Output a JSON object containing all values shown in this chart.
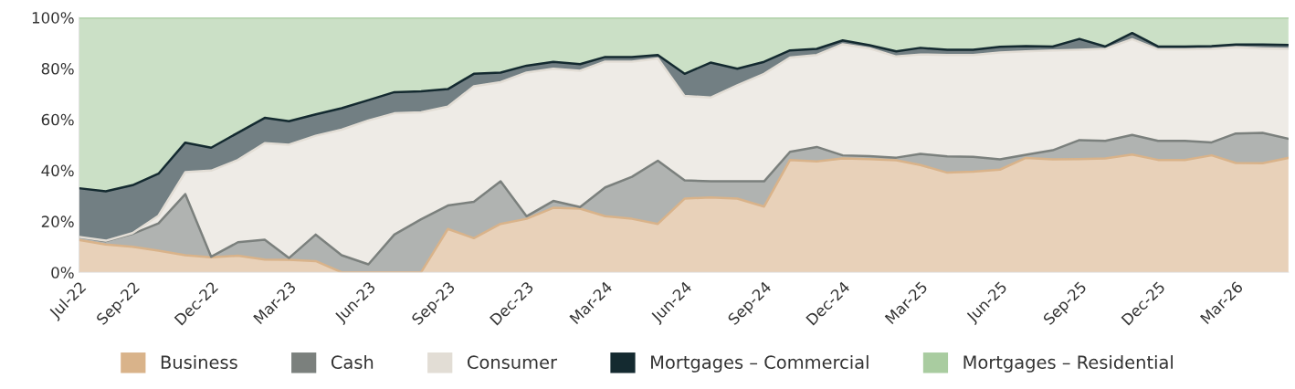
{
  "chart_data": {
    "type": "area",
    "stacked": true,
    "x": [
      "2022-07",
      "2022-08",
      "2022-09",
      "2022-10",
      "2022-11",
      "2022-12",
      "2023-01",
      "2023-02",
      "2023-03",
      "2023-04",
      "2023-05",
      "2023-06",
      "2023-07",
      "2023-08",
      "2023-09",
      "2023-10",
      "2023-11",
      "2023-12",
      "2024-01",
      "2024-02",
      "2024-03",
      "2024-04",
      "2024-05",
      "2024-06",
      "2024-07",
      "2024-08",
      "2024-09",
      "2024-10",
      "2024-11",
      "2024-12",
      "2025-01",
      "2025-02",
      "2025-03",
      "2025-04",
      "2025-05",
      "2025-06",
      "2025-07",
      "2025-08",
      "2025-09",
      "2025-10",
      "2025-11",
      "2025-12",
      "2026-01",
      "2026-02",
      "2026-03",
      "2026-04",
      "2026-05"
    ],
    "series": [
      {
        "name": "Business",
        "color": "#d9b38a",
        "values": [
          12.7,
          10.9,
          10.0,
          8.5,
          6.7,
          5.9,
          6.5,
          5.0,
          4.9,
          4.4,
          0,
          0,
          0,
          0,
          17.0,
          13.4,
          19.0,
          21.0,
          25.3,
          25.0,
          22.0,
          21.0,
          19.0,
          28.9,
          29.4,
          28.9,
          25.8,
          44.1,
          43.5,
          44.7,
          44.4,
          44.0,
          42.1,
          39.1,
          39.5,
          40.3,
          44.9,
          44.3,
          44.4,
          44.7,
          46.2,
          44.1,
          44.1,
          45.9,
          42.9,
          42.8,
          44.9
        ]
      },
      {
        "name": "Cash",
        "color": "#7b807d",
        "values": [
          1.2,
          1.3,
          5.1,
          10.7,
          24.0,
          0.2,
          5.3,
          7.8,
          0.7,
          10.4,
          6.7,
          3.1,
          14.8,
          20.8,
          9.2,
          14.3,
          16.7,
          1.0,
          2.7,
          0.6,
          11.3,
          16.5,
          24.8,
          7.2,
          6.3,
          6.8,
          9.9,
          3.2,
          5.7,
          1.2,
          1.2,
          1.0,
          4.4,
          6.4,
          5.8,
          4.0,
          1.2,
          3.6,
          7.5,
          6.9,
          7.7,
          7.5,
          7.5,
          5.1,
          11.6,
          11.9,
          7.5
        ]
      },
      {
        "name": "Consumer",
        "color": "#e2ddd5",
        "values": [
          0,
          0.2,
          0.3,
          3.0,
          8.6,
          33.8,
          32.3,
          37.9,
          44.5,
          38.8,
          49.3,
          56.5,
          47.6,
          42.0,
          38.8,
          45.3,
          38.9,
          56.4,
          51.9,
          53.5,
          49.4,
          45.2,
          40.1,
          33.1,
          32.9,
          37.7,
          42.2,
          37.0,
          36.1,
          43.6,
          42.3,
          39.7,
          39.0,
          39.8,
          40.0,
          42.0,
          40.6,
          39.2,
          35.4,
          36.1,
          37.6,
          35.9,
          35.9,
          36.7,
          33.8,
          33.2,
          35.3
        ]
      },
      {
        "name": "Mortgages – Commercial",
        "color": "#142a30",
        "values": [
          19.1,
          19.4,
          18.8,
          16.5,
          11.6,
          9.0,
          10.7,
          9.9,
          9.2,
          8.4,
          8.4,
          8.0,
          8.3,
          8.2,
          6.9,
          4.9,
          3.8,
          2.7,
          2.7,
          2.6,
          1.8,
          1.8,
          1.4,
          8.7,
          13.7,
          6.5,
          4.7,
          2.8,
          2.4,
          1.5,
          1.2,
          2.0,
          2.6,
          2.0,
          2.0,
          2.2,
          2.1,
          1.5,
          4.3,
          0.9,
          2.4,
          1.1,
          1.1,
          1.1,
          1.1,
          1.5,
          1.5
        ]
      },
      {
        "name": "Mortgages – Residential",
        "color": "#a9cca0",
        "values": [
          67.0,
          68.2,
          65.8,
          61.3,
          49.1,
          51.1,
          45.2,
          39.4,
          40.7,
          38.0,
          35.6,
          32.4,
          29.3,
          29.0,
          28.1,
          22.1,
          21.6,
          18.9,
          17.4,
          18.3,
          15.5,
          15.5,
          14.7,
          22.1,
          17.7,
          20.1,
          17.4,
          12.9,
          12.3,
          9.0,
          10.9,
          13.3,
          11.9,
          12.7,
          12.7,
          11.5,
          11.2,
          11.4,
          8.4,
          11.4,
          6.1,
          11.4,
          11.4,
          11.2,
          10.6,
          10.6,
          10.8
        ]
      }
    ],
    "xlim": [
      "2022-07",
      "2026-05"
    ],
    "xticks": [
      {
        "value": "2022-07",
        "label": "Jul-22"
      },
      {
        "value": "2022-09",
        "label": "Sep-22"
      },
      {
        "value": "2022-12",
        "label": "Dec-22"
      },
      {
        "value": "2023-03",
        "label": "Mar-23"
      },
      {
        "value": "2023-06",
        "label": "Jun-23"
      },
      {
        "value": "2023-09",
        "label": "Sep-23"
      },
      {
        "value": "2023-12",
        "label": "Dec-23"
      },
      {
        "value": "2024-03",
        "label": "Mar-24"
      },
      {
        "value": "2024-06",
        "label": "Jun-24"
      },
      {
        "value": "2024-09",
        "label": "Sep-24"
      },
      {
        "value": "2024-12",
        "label": "Dec-24"
      },
      {
        "value": "2025-03",
        "label": "Mar-25"
      },
      {
        "value": "2025-06",
        "label": "Jun-25"
      },
      {
        "value": "2025-09",
        "label": "Sep-25"
      },
      {
        "value": "2025-12",
        "label": "Dec-25"
      },
      {
        "value": "2026-03",
        "label": "Mar-26"
      }
    ],
    "ylim": [
      0,
      100
    ],
    "yticks": [
      {
        "value": 0,
        "label": "0%"
      },
      {
        "value": 20,
        "label": "20%"
      },
      {
        "value": 40,
        "label": "40%"
      },
      {
        "value": 60,
        "label": "60%"
      },
      {
        "value": 80,
        "label": "80%"
      },
      {
        "value": 100,
        "label": "100%"
      }
    ],
    "grid": false,
    "legend": "bottom"
  }
}
